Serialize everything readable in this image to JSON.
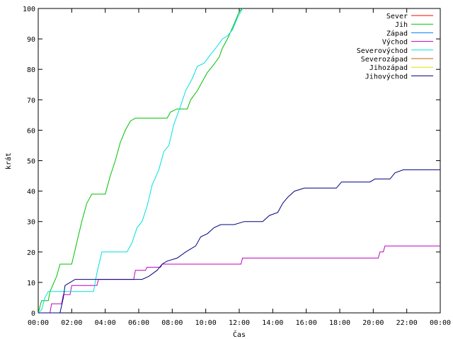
{
  "chart_data": {
    "type": "line",
    "title": "",
    "xlabel": "Čas",
    "ylabel": "krát",
    "xlim": [
      0,
      24
    ],
    "ylim": [
      0,
      100
    ],
    "x_ticks": [
      {
        "value": 0,
        "label": "00:00"
      },
      {
        "value": 2,
        "label": "02:00"
      },
      {
        "value": 4,
        "label": "04:00"
      },
      {
        "value": 6,
        "label": "06:00"
      },
      {
        "value": 8,
        "label": "08:00"
      },
      {
        "value": 10,
        "label": "10:00"
      },
      {
        "value": 12,
        "label": "12:00"
      },
      {
        "value": 14,
        "label": "14:00"
      },
      {
        "value": 16,
        "label": "16:00"
      },
      {
        "value": 18,
        "label": "18:00"
      },
      {
        "value": 20,
        "label": "20:00"
      },
      {
        "value": 22,
        "label": "22:00"
      },
      {
        "value": 24,
        "label": "00:00"
      }
    ],
    "y_ticks": [
      {
        "value": 0,
        "label": "0"
      },
      {
        "value": 10,
        "label": "10"
      },
      {
        "value": 20,
        "label": "20"
      },
      {
        "value": 30,
        "label": "30"
      },
      {
        "value": 40,
        "label": "40"
      },
      {
        "value": 50,
        "label": "50"
      },
      {
        "value": 60,
        "label": "60"
      },
      {
        "value": 70,
        "label": "70"
      },
      {
        "value": 80,
        "label": "80"
      },
      {
        "value": 90,
        "label": "90"
      },
      {
        "value": 100,
        "label": "100"
      }
    ],
    "grid": false,
    "legend_position": "top-right",
    "series": [
      {
        "name": "Sever",
        "color": "#ff0000",
        "points": []
      },
      {
        "name": "Jih",
        "color": "#00c000",
        "points": [
          [
            0,
            0
          ],
          [
            0.2,
            4
          ],
          [
            0.6,
            4
          ],
          [
            0.7,
            7
          ],
          [
            1.1,
            12
          ],
          [
            1.3,
            16
          ],
          [
            2.0,
            16
          ],
          [
            2.3,
            23
          ],
          [
            2.6,
            30
          ],
          [
            2.9,
            36
          ],
          [
            3.2,
            39
          ],
          [
            4.0,
            39
          ],
          [
            4.3,
            45
          ],
          [
            4.6,
            50
          ],
          [
            4.9,
            56
          ],
          [
            5.2,
            60
          ],
          [
            5.5,
            63
          ],
          [
            5.8,
            64
          ],
          [
            7.7,
            64
          ],
          [
            7.9,
            66
          ],
          [
            8.3,
            67
          ],
          [
            8.9,
            67
          ],
          [
            9.1,
            70
          ],
          [
            9.5,
            73
          ],
          [
            9.8,
            76
          ],
          [
            10.1,
            79
          ],
          [
            10.4,
            81
          ],
          [
            10.8,
            84
          ],
          [
            11.0,
            87
          ],
          [
            11.3,
            90
          ],
          [
            11.7,
            95
          ],
          [
            12.0,
            99
          ],
          [
            12.2,
            100
          ]
        ]
      },
      {
        "name": "Západ",
        "color": "#0080ff",
        "points": []
      },
      {
        "name": "Východ",
        "color": "#c000c0",
        "points": [
          [
            0,
            0
          ],
          [
            0.7,
            0
          ],
          [
            0.8,
            3
          ],
          [
            1.4,
            3
          ],
          [
            1.5,
            6
          ],
          [
            1.9,
            6
          ],
          [
            2.0,
            9
          ],
          [
            3.5,
            9
          ],
          [
            3.6,
            11
          ],
          [
            5.7,
            11
          ],
          [
            5.8,
            14
          ],
          [
            6.4,
            14
          ],
          [
            6.5,
            15
          ],
          [
            7.3,
            15
          ],
          [
            7.4,
            16
          ],
          [
            12.1,
            16
          ],
          [
            12.2,
            18
          ],
          [
            20.3,
            18
          ],
          [
            20.4,
            20
          ],
          [
            20.6,
            20
          ],
          [
            20.7,
            22
          ],
          [
            24.0,
            22
          ]
        ]
      },
      {
        "name": "Severovýchod",
        "color": "#00e0e0",
        "points": [
          [
            0,
            0
          ],
          [
            0.2,
            1
          ],
          [
            0.4,
            5
          ],
          [
            0.6,
            7
          ],
          [
            1.6,
            7
          ],
          [
            1.8,
            7
          ],
          [
            3.3,
            7
          ],
          [
            3.5,
            13
          ],
          [
            3.8,
            20
          ],
          [
            5.3,
            20
          ],
          [
            5.6,
            23
          ],
          [
            5.9,
            28
          ],
          [
            6.2,
            30
          ],
          [
            6.5,
            35
          ],
          [
            6.8,
            42
          ],
          [
            7.2,
            47
          ],
          [
            7.5,
            53
          ],
          [
            7.8,
            55
          ],
          [
            8.1,
            62
          ],
          [
            8.5,
            68
          ],
          [
            8.8,
            73
          ],
          [
            9.2,
            77
          ],
          [
            9.5,
            81
          ],
          [
            9.9,
            82
          ],
          [
            10.3,
            85
          ],
          [
            10.6,
            87
          ],
          [
            11.0,
            90
          ],
          [
            11.3,
            91
          ],
          [
            11.6,
            93
          ],
          [
            11.9,
            97
          ],
          [
            12.2,
            100
          ]
        ]
      },
      {
        "name": "Severozápad",
        "color": "#c06000",
        "points": []
      },
      {
        "name": "Jihozápad",
        "color": "#e0e000",
        "points": []
      },
      {
        "name": "Jihovýchod",
        "color": "#000080",
        "points": [
          [
            0,
            0
          ],
          [
            1.3,
            0
          ],
          [
            1.5,
            5
          ],
          [
            1.6,
            9
          ],
          [
            1.9,
            10
          ],
          [
            2.2,
            11
          ],
          [
            6.2,
            11
          ],
          [
            6.6,
            12
          ],
          [
            7.1,
            14
          ],
          [
            7.4,
            16
          ],
          [
            7.7,
            17
          ],
          [
            8.3,
            18
          ],
          [
            8.8,
            20
          ],
          [
            9.4,
            22
          ],
          [
            9.7,
            25
          ],
          [
            10.1,
            26
          ],
          [
            10.5,
            28
          ],
          [
            10.9,
            29
          ],
          [
            11.7,
            29
          ],
          [
            12.3,
            30
          ],
          [
            13.4,
            30
          ],
          [
            13.8,
            32
          ],
          [
            14.3,
            33
          ],
          [
            14.6,
            36
          ],
          [
            14.9,
            38
          ],
          [
            15.3,
            40
          ],
          [
            15.9,
            41
          ],
          [
            17.8,
            41
          ],
          [
            18.1,
            43
          ],
          [
            19.2,
            43
          ],
          [
            19.8,
            43
          ],
          [
            20.1,
            44
          ],
          [
            21.0,
            44
          ],
          [
            21.3,
            46
          ],
          [
            21.8,
            47
          ],
          [
            24.0,
            47
          ]
        ]
      }
    ]
  }
}
